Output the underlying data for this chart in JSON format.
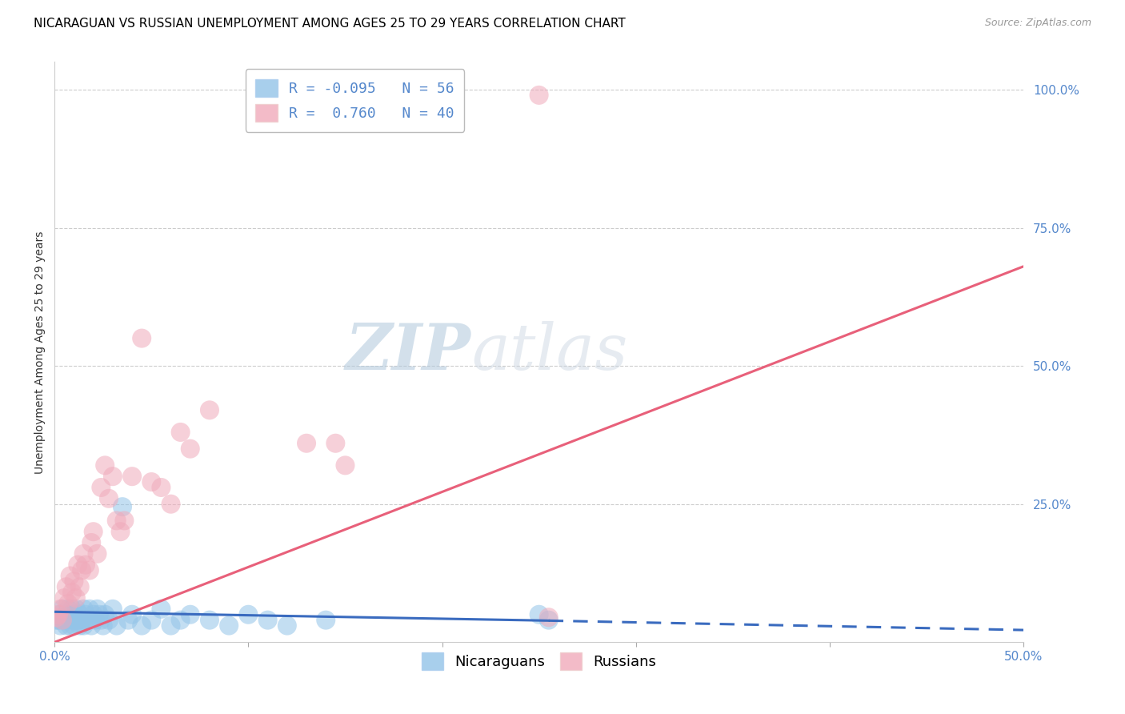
{
  "title": "NICARAGUAN VS RUSSIAN UNEMPLOYMENT AMONG AGES 25 TO 29 YEARS CORRELATION CHART",
  "source": "Source: ZipAtlas.com",
  "ylabel": "Unemployment Among Ages 25 to 29 years",
  "xlim": [
    0.0,
    0.5
  ],
  "ylim": [
    0.0,
    1.05
  ],
  "xtick_positions": [
    0.0,
    0.5
  ],
  "xticklabels": [
    "0.0%",
    "50.0%"
  ],
  "ytick_positions": [
    0.0,
    0.25,
    0.5,
    0.75,
    1.0
  ],
  "yticklabels_right": [
    "",
    "25.0%",
    "50.0%",
    "75.0%",
    "100.0%"
  ],
  "background_color": "#ffffff",
  "nicaraguan_color": "#93c4e8",
  "russian_color": "#f0aabb",
  "nicaraguan_line_color": "#3a6bbf",
  "russian_line_color": "#e8607a",
  "legend_R_nicaraguan": "-0.095",
  "legend_N_nicaraguan": "56",
  "legend_R_russian": "0.760",
  "legend_N_russian": "40",
  "grid_color": "#cccccc",
  "tick_color": "#5588cc",
  "nic_line_x0": 0.0,
  "nic_line_x_solid_end": 0.255,
  "nic_line_x1": 0.5,
  "nic_line_y0": 0.055,
  "nic_line_y_solid_end": 0.039,
  "nic_line_y1": 0.022,
  "rus_line_x0": 0.0,
  "rus_line_x1": 0.5,
  "rus_line_y0": 0.0,
  "rus_line_y1": 0.68,
  "nicaraguan_x": [
    0.001,
    0.002,
    0.003,
    0.003,
    0.004,
    0.004,
    0.005,
    0.006,
    0.006,
    0.007,
    0.007,
    0.008,
    0.008,
    0.009,
    0.009,
    0.01,
    0.01,
    0.011,
    0.011,
    0.012,
    0.013,
    0.013,
    0.014,
    0.015,
    0.015,
    0.016,
    0.017,
    0.018,
    0.019,
    0.02,
    0.021,
    0.022,
    0.023,
    0.024,
    0.025,
    0.026,
    0.028,
    0.03,
    0.032,
    0.035,
    0.038,
    0.04,
    0.045,
    0.05,
    0.055,
    0.06,
    0.065,
    0.07,
    0.08,
    0.09,
    0.1,
    0.11,
    0.12,
    0.14,
    0.25,
    0.255
  ],
  "nicaraguan_y": [
    0.04,
    0.04,
    0.03,
    0.05,
    0.04,
    0.06,
    0.04,
    0.03,
    0.05,
    0.04,
    0.06,
    0.03,
    0.05,
    0.04,
    0.06,
    0.03,
    0.05,
    0.04,
    0.06,
    0.04,
    0.05,
    0.03,
    0.04,
    0.06,
    0.03,
    0.05,
    0.04,
    0.06,
    0.03,
    0.05,
    0.04,
    0.06,
    0.05,
    0.04,
    0.03,
    0.05,
    0.04,
    0.06,
    0.03,
    0.245,
    0.04,
    0.05,
    0.03,
    0.04,
    0.06,
    0.03,
    0.04,
    0.05,
    0.04,
    0.03,
    0.05,
    0.04,
    0.03,
    0.04,
    0.05,
    0.04
  ],
  "russian_x": [
    0.001,
    0.002,
    0.003,
    0.004,
    0.005,
    0.006,
    0.007,
    0.008,
    0.009,
    0.01,
    0.011,
    0.012,
    0.013,
    0.014,
    0.015,
    0.016,
    0.018,
    0.019,
    0.02,
    0.022,
    0.024,
    0.026,
    0.028,
    0.03,
    0.032,
    0.034,
    0.036,
    0.04,
    0.045,
    0.05,
    0.055,
    0.06,
    0.065,
    0.07,
    0.08,
    0.13,
    0.145,
    0.15,
    0.25,
    0.255
  ],
  "russian_y": [
    0.045,
    0.05,
    0.06,
    0.04,
    0.08,
    0.1,
    0.07,
    0.12,
    0.09,
    0.11,
    0.08,
    0.14,
    0.1,
    0.13,
    0.16,
    0.14,
    0.13,
    0.18,
    0.2,
    0.16,
    0.28,
    0.32,
    0.26,
    0.3,
    0.22,
    0.2,
    0.22,
    0.3,
    0.55,
    0.29,
    0.28,
    0.25,
    0.38,
    0.35,
    0.42,
    0.36,
    0.36,
    0.32,
    0.99,
    0.045
  ],
  "title_fontsize": 11,
  "axis_label_fontsize": 10,
  "tick_fontsize": 11,
  "legend_fontsize": 13
}
